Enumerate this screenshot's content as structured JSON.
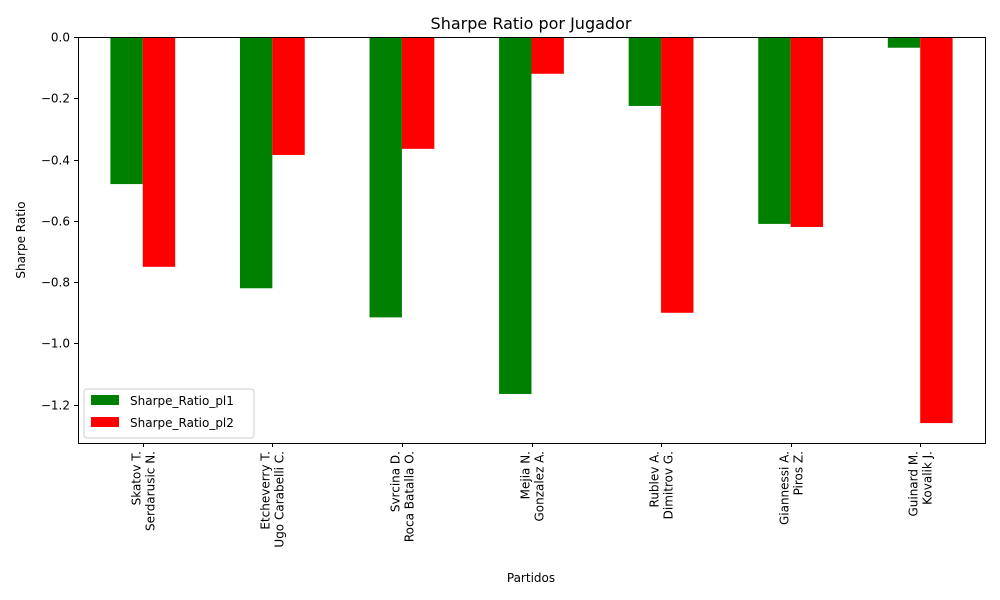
{
  "chart_data": {
    "type": "bar",
    "title": "Sharpe Ratio por Jugador",
    "xlabel": "Partidos",
    "ylabel": "Sharpe Ratio",
    "categories": [
      [
        "Skatov T.",
        "Serdarusic N."
      ],
      [
        "Etcheverry T.",
        "Ugo Carabelli C."
      ],
      [
        "Svrcina D.",
        "Roca Batalla O."
      ],
      [
        "Mejia N.",
        "Gonzalez A."
      ],
      [
        "Rublev A.",
        "Dimitrov G."
      ],
      [
        "Giannessi A.",
        "Piros Z."
      ],
      [
        "Guinard M.",
        "Kovalik J."
      ]
    ],
    "series": [
      {
        "name": "Sharpe_Ratio_pl1",
        "color": "#008000",
        "values": [
          -0.48,
          -0.82,
          -0.915,
          -1.165,
          -0.225,
          -0.61,
          -0.035
        ]
      },
      {
        "name": "Sharpe_Ratio_pl2",
        "color": "#ff0000",
        "values": [
          -0.75,
          -0.385,
          -0.365,
          -0.12,
          -0.9,
          -0.62,
          -1.26
        ]
      }
    ],
    "ylim": [
      -1.325,
      0.0
    ],
    "yticks": [
      0.0,
      -0.2,
      -0.4,
      -0.6,
      -0.8,
      -1.0,
      -1.2
    ],
    "ytick_labels": [
      "0.0",
      "−0.2",
      "−0.4",
      "−0.6",
      "−0.8",
      "−1.0",
      "−1.2"
    ],
    "grid": false,
    "legend_position": "lower-left"
  }
}
